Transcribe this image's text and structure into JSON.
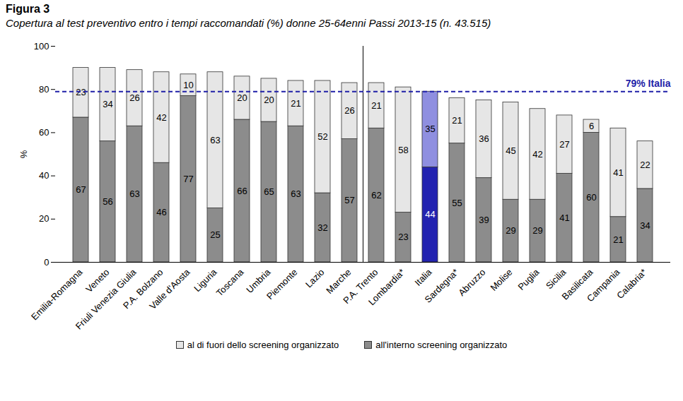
{
  "chart_data": {
    "type": "bar",
    "title": "Figura 3",
    "subtitle": "Copertura al test preventivo entro i tempi raccomandati (%) donne 25-64enni Passi 2013-15 (n. 43.515)",
    "y_label": "%",
    "categories": [
      "Emilia-Romagna",
      "Veneto",
      "Friuli Venezia Giulia",
      "P.A. Bolzano",
      "Valle d'Aosta",
      "Liguria",
      "Toscana",
      "Umbria",
      "Piemonte",
      "Lazio",
      "Marche",
      "P.A. Trento",
      "Lombardia*",
      "Italia",
      "Sardegna*",
      "Abruzzo",
      "Molise",
      "Puglia",
      "Sicilia",
      "Basilicata",
      "Campania",
      "Calabria*"
    ],
    "series": [
      {
        "name": "al di fuori dello screening organizzato",
        "color": "#e6e6e6",
        "colors": [
          "#e6e6e6",
          "#e6e6e6",
          "#e6e6e6",
          "#e6e6e6",
          "#e6e6e6",
          "#e6e6e6",
          "#e6e6e6",
          "#e6e6e6",
          "#e6e6e6",
          "#e6e6e6",
          "#e6e6e6",
          "#e6e6e6",
          "#e6e6e6",
          "#8f8fe0",
          "#e6e6e6",
          "#e6e6e6",
          "#e6e6e6",
          "#e6e6e6",
          "#e6e6e6",
          "#e6e6e6",
          "#e6e6e6",
          "#e6e6e6"
        ],
        "values": [
          23,
          34,
          26,
          42,
          10,
          63,
          20,
          20,
          21,
          52,
          26,
          21,
          58,
          35,
          21,
          36,
          45,
          42,
          27,
          6,
          41,
          22
        ]
      },
      {
        "name": "all'interno screening organizzato",
        "color": "#8c8c8c",
        "colors": [
          "#8c8c8c",
          "#8c8c8c",
          "#8c8c8c",
          "#8c8c8c",
          "#8c8c8c",
          "#8c8c8c",
          "#8c8c8c",
          "#8c8c8c",
          "#8c8c8c",
          "#8c8c8c",
          "#8c8c8c",
          "#8c8c8c",
          "#8c8c8c",
          "#2323b0",
          "#8c8c8c",
          "#8c8c8c",
          "#8c8c8c",
          "#8c8c8c",
          "#8c8c8c",
          "#8c8c8c",
          "#8c8c8c",
          "#8c8c8c"
        ],
        "values": [
          67,
          56,
          63,
          46,
          77,
          25,
          66,
          65,
          63,
          32,
          57,
          62,
          23,
          44,
          55,
          39,
          29,
          29,
          41,
          60,
          21,
          34
        ]
      }
    ],
    "stacked": true,
    "data_labels": true,
    "legend": "bottom",
    "grid": false,
    "ylim": [
      0,
      100
    ],
    "yticks": [
      0,
      20,
      40,
      60,
      80,
      100
    ],
    "annotations": [
      {
        "text": "79% Italia",
        "y": 79,
        "color": "#1f1fa8",
        "line_style": "dashed"
      }
    ]
  }
}
